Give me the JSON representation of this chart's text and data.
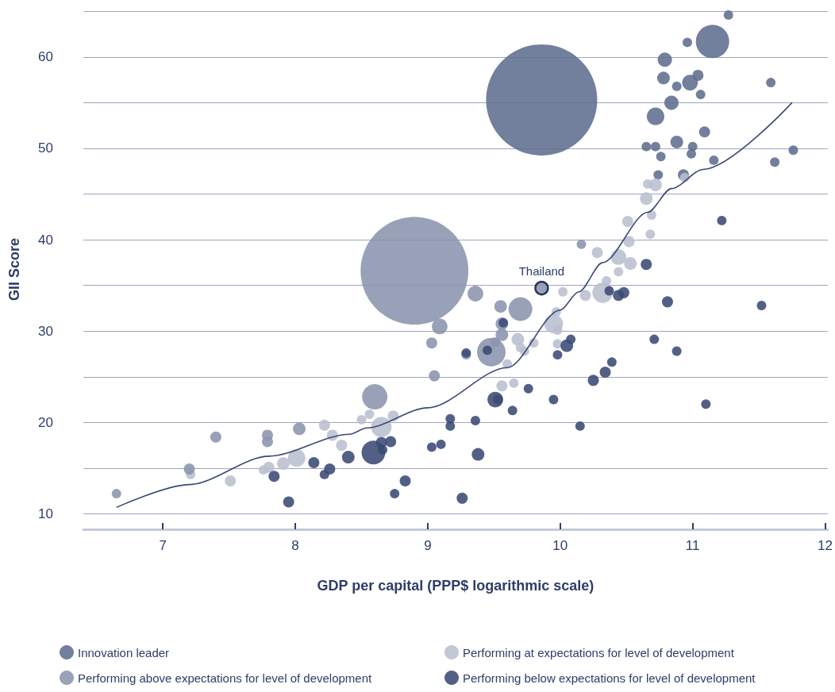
{
  "chart_data": {
    "type": "bubble",
    "xlabel": "GDP per capital (PPP$ logarithmic scale)",
    "ylabel": "GII Score",
    "xlim": [
      6.4,
      12.02
    ],
    "xticks": [
      7,
      8,
      9,
      10,
      11,
      12
    ],
    "ylim": [
      8.3,
      65.2
    ],
    "yticks": [
      10,
      {
        "value": 15,
        "label": null
      },
      20,
      {
        "value": 25,
        "label": null
      },
      30,
      {
        "value": 35,
        "label": null
      },
      40,
      {
        "value": 45,
        "label": null
      },
      50,
      {
        "value": 55,
        "label": null
      },
      60,
      {
        "value": 65,
        "label": null
      }
    ],
    "grid": "y",
    "legend": "bottom",
    "annotations": [
      {
        "text": "Thailand",
        "x": 9.86,
        "y": 34.7
      }
    ],
    "series": [
      {
        "name": "Innovation leader",
        "color": "#5f6e90",
        "x": [
          11.27,
          11.15,
          10.96,
          10.79,
          10.78,
          10.88,
          10.98,
          11.04,
          11.06,
          11.59,
          10.84,
          10.72,
          11.09,
          10.88,
          10.65,
          10.72,
          11.0,
          10.99,
          10.76,
          11.16,
          11.76,
          11.62,
          10.74,
          10.93,
          9.86
        ],
        "values": [
          64.6,
          61.7,
          61.6,
          59.7,
          57.7,
          56.8,
          57.2,
          58.0,
          55.9,
          57.2,
          55.0,
          53.5,
          51.8,
          50.7,
          50.2,
          50.2,
          50.2,
          49.4,
          49.1,
          48.7,
          49.8,
          48.5,
          47.1,
          47.1,
          55.3
        ],
        "sizes": [
          0.0073,
          0.09,
          0.0073,
          0.0165,
          0.013,
          0.0073,
          0.02,
          0.01,
          0.0073,
          0.0073,
          0.0165,
          0.025,
          0.01,
          0.013,
          0.0073,
          0.0073,
          0.0073,
          0.0073,
          0.0073,
          0.0073,
          0.0073,
          0.0073,
          0.0073,
          0.01,
          1
        ]
      },
      {
        "name": "Performing at expectations for level of development",
        "color": "#b9bfcf",
        "x": [
          8.22,
          8.28,
          8.35,
          8.5,
          8.01,
          7.91,
          7.8,
          7.76,
          7.51,
          7.21,
          8.56,
          8.74,
          8.65,
          10.02,
          9.97,
          9.95,
          9.98,
          9.8,
          9.68,
          9.7,
          9.73,
          9.6,
          9.56,
          9.65,
          9.98,
          10.66,
          10.72,
          10.94,
          10.65,
          10.69,
          10.51,
          10.68,
          10.52,
          10.28,
          10.44,
          10.53,
          10.44,
          10.35,
          10.32,
          10.19
        ],
        "values": [
          19.7,
          18.6,
          17.5,
          20.3,
          16.1,
          15.5,
          15.1,
          14.8,
          13.6,
          14.3,
          20.9,
          20.7,
          19.5,
          34.3,
          32.1,
          30.8,
          30.1,
          28.7,
          29.1,
          28.2,
          27.8,
          26.4,
          24.0,
          24.3,
          28.6,
          46.1,
          46.0,
          46.8,
          44.5,
          42.7,
          42.0,
          40.6,
          39.8,
          38.6,
          38.1,
          37.4,
          36.5,
          35.5,
          34.2,
          33.9
        ],
        "sizes": [
          0.01,
          0.01,
          0.01,
          0.0073,
          0.025,
          0.013,
          0.01,
          0.0073,
          0.01,
          0.0073,
          0.0073,
          0.01,
          0.034,
          0.0073,
          0.0073,
          0.029,
          0.0073,
          0.0073,
          0.013,
          0.0073,
          0.0073,
          0.0073,
          0.01,
          0.0073,
          0.0073,
          0.0073,
          0.013,
          0.0073,
          0.013,
          0.0073,
          0.01,
          0.0073,
          0.01,
          0.01,
          0.02,
          0.013,
          0.0073,
          0.0073,
          0.034,
          0.01
        ]
      },
      {
        "name": "Performing above expectations for level of development",
        "color": "#8a94ad",
        "x": [
          8.9,
          9.48,
          6.65,
          7.4,
          7.2,
          7.79,
          7.79,
          8.03,
          9.36,
          9.09,
          9.55,
          9.7,
          9.56,
          9.56,
          9.51,
          9.03,
          9.29,
          9.05,
          8.6,
          9.86,
          10.16
        ],
        "values": [
          36.6,
          27.7,
          12.2,
          18.4,
          14.9,
          18.6,
          17.9,
          19.3,
          34.1,
          30.5,
          32.7,
          32.4,
          30.8,
          29.6,
          28.8,
          28.7,
          27.4,
          25.1,
          22.8,
          34.7,
          39.5
        ],
        "sizes": [
          0.94,
          0.066,
          0.0073,
          0.01,
          0.01,
          0.01,
          0.01,
          0.013,
          0.02,
          0.02,
          0.013,
          0.046,
          0.013,
          0.013,
          0.0073,
          0.01,
          0.0073,
          0.01,
          0.052,
          0.013,
          0.0073
        ]
      },
      {
        "name": "Performing below expectations for level of development",
        "color": "#3a4a75",
        "x": [
          7.84,
          7.95,
          8.14,
          8.26,
          8.22,
          8.4,
          8.59,
          8.65,
          8.66,
          8.72,
          8.83,
          8.75,
          9.26,
          9.03,
          9.1,
          9.17,
          9.17,
          9.36,
          9.38,
          9.51,
          9.53,
          9.64,
          9.76,
          9.95,
          9.29,
          9.57,
          9.45,
          10.05,
          10.08,
          9.98,
          10.15,
          10.65,
          10.37,
          10.44,
          10.48,
          10.81,
          11.52,
          10.71,
          10.88,
          10.39,
          10.34,
          10.25,
          11.1,
          11.22
        ],
        "values": [
          14.1,
          11.3,
          15.6,
          14.9,
          14.3,
          16.2,
          16.7,
          17.8,
          17.0,
          17.9,
          13.6,
          12.2,
          11.7,
          17.3,
          17.6,
          20.4,
          19.6,
          20.2,
          16.5,
          22.5,
          22.5,
          21.3,
          23.7,
          22.5,
          27.6,
          30.9,
          27.9,
          28.4,
          29.1,
          27.4,
          19.6,
          37.3,
          34.4,
          33.9,
          34.2,
          33.2,
          32.8,
          29.1,
          27.8,
          26.6,
          25.5,
          24.6,
          22.0,
          42.1
        ],
        "sizes": [
          0.01,
          0.01,
          0.01,
          0.01,
          0.0073,
          0.013,
          0.046,
          0.01,
          0.0073,
          0.01,
          0.01,
          0.0073,
          0.01,
          0.0073,
          0.0073,
          0.0073,
          0.0073,
          0.0073,
          0.013,
          0.02,
          0.0073,
          0.0073,
          0.0073,
          0.0073,
          0.0073,
          0.0073,
          0.0073,
          0.013,
          0.0073,
          0.0073,
          0.0073,
          0.01,
          0.0073,
          0.01,
          0.01,
          0.01,
          0.0073,
          0.0073,
          0.0073,
          0.0073,
          0.01,
          0.01,
          0.0073,
          0.0073
        ]
      },
      {
        "type": "line",
        "color": "#3a4a75",
        "marker": "none",
        "x": [
          6.65,
          7.2,
          7.8,
          8.41,
          8.54,
          9.0,
          9.6,
          10.0,
          10.14,
          10.32,
          10.66,
          10.84,
          11.08,
          11.75
        ],
        "values": [
          10.7,
          13.2,
          16.3,
          18.7,
          19.4,
          21.6,
          26.0,
          32.3,
          34.3,
          37.5,
          43.0,
          45.6,
          47.7,
          55.0
        ]
      }
    ]
  }
}
